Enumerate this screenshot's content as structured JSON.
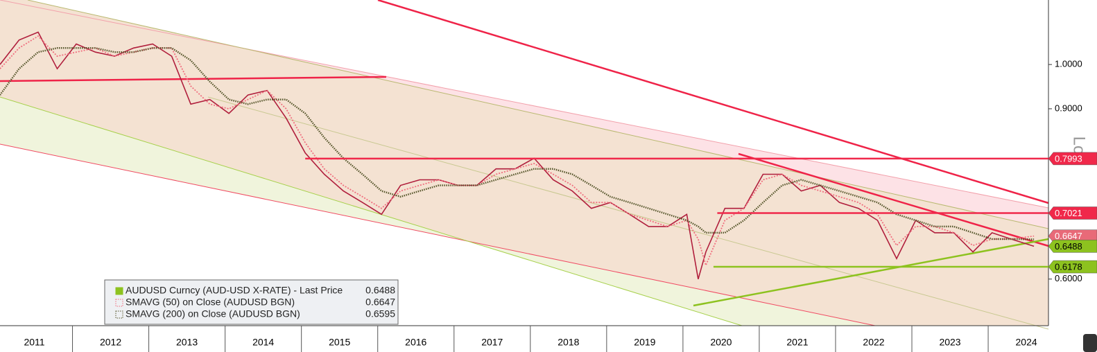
{
  "chart_data": {
    "type": "line",
    "x": [
      2011.05,
      2011.3,
      2011.55,
      2011.8,
      2012.05,
      2012.3,
      2012.55,
      2012.8,
      2013.05,
      2013.3,
      2013.55,
      2013.8,
      2014.05,
      2014.3,
      2014.55,
      2014.8,
      2015.05,
      2015.3,
      2015.55,
      2015.8,
      2016.05,
      2016.3,
      2016.55,
      2016.8,
      2017.05,
      2017.3,
      2017.55,
      2017.8,
      2018.05,
      2018.3,
      2018.55,
      2018.8,
      2019.05,
      2019.3,
      2019.55,
      2019.8,
      2020.05,
      2020.2,
      2020.3,
      2020.55,
      2020.8,
      2021.05,
      2021.3,
      2021.55,
      2021.8,
      2022.05,
      2022.3,
      2022.55,
      2022.8,
      2023.05,
      2023.3,
      2023.55,
      2023.8,
      2024.05,
      2024.3,
      2024.6
    ],
    "series": [
      {
        "name": "AUDUSD Curncy (AUD-USD X-RATE) - Last Price",
        "last": 0.6488,
        "color": "#b01e3c",
        "marker": "#8dc21f",
        "dash": "none",
        "values": [
          1.0,
          1.06,
          1.08,
          0.99,
          1.05,
          1.03,
          1.02,
          1.04,
          1.05,
          1.02,
          0.91,
          0.92,
          0.89,
          0.93,
          0.94,
          0.88,
          0.81,
          0.77,
          0.74,
          0.72,
          0.7,
          0.75,
          0.76,
          0.76,
          0.75,
          0.75,
          0.78,
          0.78,
          0.8,
          0.76,
          0.74,
          0.71,
          0.72,
          0.7,
          0.68,
          0.68,
          0.7,
          0.6,
          0.64,
          0.71,
          0.71,
          0.77,
          0.77,
          0.74,
          0.75,
          0.72,
          0.71,
          0.69,
          0.63,
          0.69,
          0.67,
          0.67,
          0.64,
          0.67,
          0.66,
          0.6488
        ]
      },
      {
        "name": "SMAVG (50)  on Close (AUDUSD BGN)",
        "last": 0.6647,
        "color": "#f06d7e",
        "marker": "#f06d7e",
        "dash": "2,2",
        "values": [
          0.99,
          1.04,
          1.07,
          1.02,
          1.03,
          1.04,
          1.02,
          1.03,
          1.04,
          1.04,
          0.95,
          0.91,
          0.9,
          0.92,
          0.94,
          0.9,
          0.83,
          0.78,
          0.75,
          0.73,
          0.71,
          0.74,
          0.75,
          0.76,
          0.75,
          0.75,
          0.77,
          0.78,
          0.79,
          0.77,
          0.75,
          0.72,
          0.72,
          0.7,
          0.69,
          0.68,
          0.69,
          0.66,
          0.62,
          0.69,
          0.71,
          0.76,
          0.77,
          0.75,
          0.74,
          0.73,
          0.72,
          0.7,
          0.65,
          0.68,
          0.68,
          0.67,
          0.65,
          0.66,
          0.66,
          0.6647
        ]
      },
      {
        "name": "SMAVG (200)  on Close (AUDUSD BGN)",
        "last": 0.6595,
        "color": "#55552a",
        "marker": "#55552a",
        "dash": "1.5,1.5",
        "values": [
          0.93,
          0.99,
          1.03,
          1.04,
          1.04,
          1.04,
          1.03,
          1.03,
          1.04,
          1.04,
          1.01,
          0.96,
          0.92,
          0.91,
          0.92,
          0.92,
          0.89,
          0.84,
          0.8,
          0.77,
          0.74,
          0.73,
          0.74,
          0.75,
          0.75,
          0.75,
          0.76,
          0.77,
          0.78,
          0.78,
          0.77,
          0.75,
          0.73,
          0.72,
          0.71,
          0.7,
          0.69,
          0.68,
          0.67,
          0.67,
          0.69,
          0.72,
          0.75,
          0.76,
          0.75,
          0.74,
          0.73,
          0.72,
          0.7,
          0.69,
          0.68,
          0.68,
          0.67,
          0.66,
          0.66,
          0.6595
        ]
      }
    ],
    "xlim": [
      2011.05,
      2024.79
    ],
    "xticks": [
      {
        "value": 2011,
        "label": "2011"
      },
      {
        "value": 2012,
        "label": "2012"
      },
      {
        "value": 2013,
        "label": "2013"
      },
      {
        "value": 2014,
        "label": "2014"
      },
      {
        "value": 2015,
        "label": "2015"
      },
      {
        "value": 2016,
        "label": "2016"
      },
      {
        "value": 2017,
        "label": "2017"
      },
      {
        "value": 2018,
        "label": "2018"
      },
      {
        "value": 2019,
        "label": "2019"
      },
      {
        "value": 2020,
        "label": "2020"
      },
      {
        "value": 2021,
        "label": "2021"
      },
      {
        "value": 2022,
        "label": "2022"
      },
      {
        "value": 2023,
        "label": "2023"
      },
      {
        "value": 2024,
        "label": "2024"
      }
    ],
    "ylim": [
      0.537,
      1.166
    ],
    "log_scale": true,
    "yticks": [
      {
        "value": 1,
        "label": "1.0000"
      },
      {
        "value": 0.9,
        "label": "0.9000"
      },
      {
        "value": 0.6,
        "label": "0.6000"
      }
    ],
    "levels": [
      {
        "value": 0.7993,
        "start": 2015.05,
        "color": "#f0284a",
        "text": "#ffffff"
      },
      {
        "value": 0.7021,
        "start": 2020.45,
        "color": "#f0284a",
        "text": "#ffffff"
      },
      {
        "value": 0.6647,
        "color": "#e86a78",
        "text": "#ffffff"
      },
      {
        "value": 0.6488,
        "color": "#8dc21f",
        "text": "#000000"
      },
      {
        "value": 0.6178,
        "start": 2020.4,
        "color": "#8dc21f",
        "text": "#000000"
      }
    ],
    "side_label": "Lo"
  }
}
